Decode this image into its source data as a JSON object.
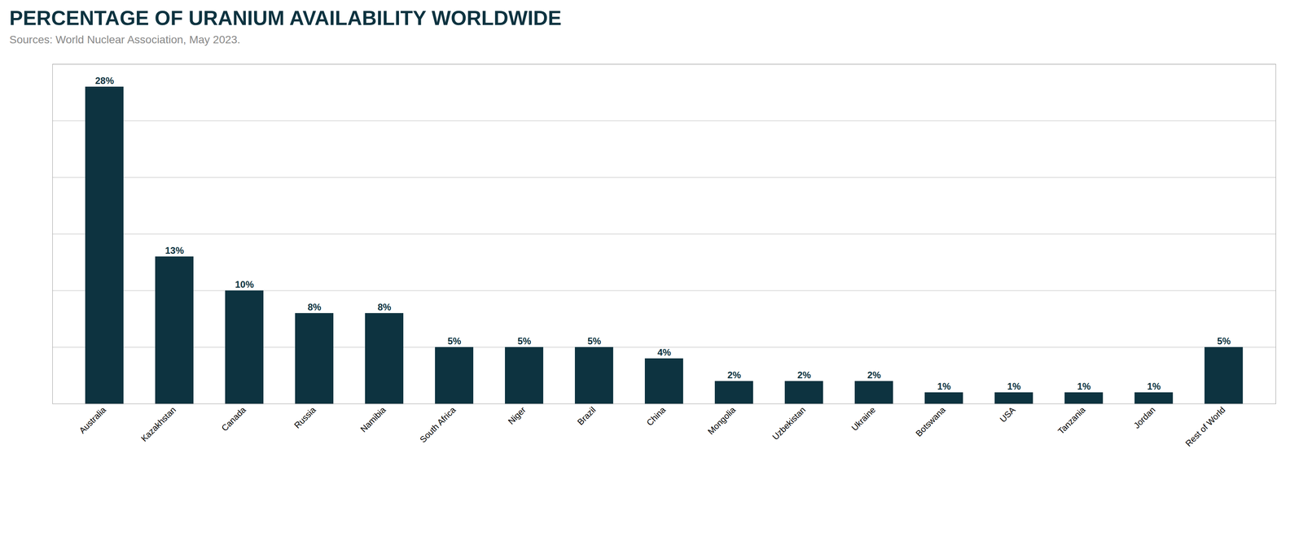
{
  "chart_data": {
    "type": "bar",
    "title": "PERCENTAGE OF URANIUM AVAILABILITY WORLDWIDE",
    "subtitle": "Sources: World Nuclear Association, May 2023.",
    "categories": [
      "Australia",
      "Kazakhstan",
      "Canada",
      "Russia",
      "Namibia",
      "South Africa",
      "Niger",
      "Brazil",
      "China",
      "Mongolia",
      "Uzbekistan",
      "Ukraine",
      "Botswana",
      "USA",
      "Tanzania",
      "Jordan",
      "Rest of World"
    ],
    "values": [
      28,
      13,
      10,
      8,
      8,
      5,
      5,
      5,
      4,
      2,
      2,
      2,
      1,
      1,
      1,
      1,
      5
    ],
    "value_labels": [
      "28%",
      "13%",
      "10%",
      "8%",
      "8%",
      "5%",
      "5%",
      "5%",
      "4%",
      "2%",
      "2%",
      "2%",
      "1%",
      "1%",
      "1%",
      "1%",
      "5%"
    ],
    "color": "#0d3340",
    "ylim": [
      0,
      30
    ],
    "yticks": [
      5,
      10,
      15,
      20,
      25,
      30
    ],
    "grid": true,
    "data_labels": true,
    "tick_labels": "x"
  }
}
